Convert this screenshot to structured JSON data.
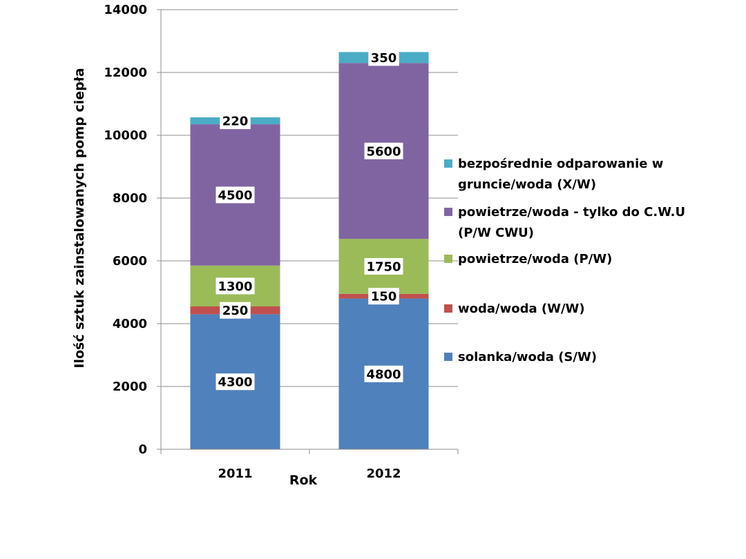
{
  "chart_data": {
    "type": "bar",
    "stacked": true,
    "title": "",
    "xlabel": "Rok",
    "ylabel": "Ilość sztuk zainstalowanych pomp ciepła",
    "ylim": [
      0,
      14000
    ],
    "yticks": [
      0,
      2000,
      4000,
      6000,
      8000,
      10000,
      12000,
      14000
    ],
    "ytick_labels": [
      "0",
      "2000",
      "4000",
      "6000",
      "8000",
      "10000",
      "12000",
      "14000"
    ],
    "grid": true,
    "legend_position": "right",
    "categories": [
      "2011",
      "2012"
    ],
    "series": [
      {
        "name": "solanka/woda (S/W)",
        "values": [
          4300,
          4800
        ],
        "labels": [
          "4300",
          "4800"
        ],
        "color": "#4f81bd"
      },
      {
        "name": "woda/woda (W/W)",
        "values": [
          250,
          150
        ],
        "labels": [
          "250",
          "150"
        ],
        "color": "#c0504d"
      },
      {
        "name": "powietrze/woda (P/W)",
        "values": [
          1300,
          1750
        ],
        "labels": [
          "1300",
          "1750"
        ],
        "color": "#9bbb59"
      },
      {
        "name": "powietrze/woda - tylko do C.W.U (P/W CWU)",
        "legend_lines": [
          "powietrze/woda - tylko do C.W.U",
          "(P/W CWU)"
        ],
        "values": [
          4500,
          5600
        ],
        "labels": [
          "4500",
          "5600"
        ],
        "color": "#8064a2"
      },
      {
        "name": "bezpośrednie odparowanie w gruncie/woda (X/W)",
        "legend_lines": [
          "bezpośrednie odparowanie w",
          "gruncie/woda (X/W)"
        ],
        "values": [
          220,
          350
        ],
        "labels": [
          "220",
          "350"
        ],
        "color": "#4bacc6"
      }
    ],
    "legend_order": [
      4,
      3,
      2,
      1,
      0
    ]
  }
}
